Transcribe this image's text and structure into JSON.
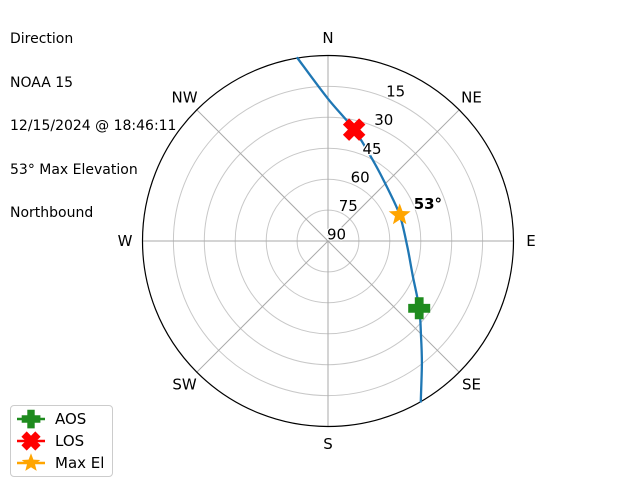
{
  "header": {
    "title": "Direction",
    "satellite": "NOAA 15",
    "timestamp": "12/15/2024 @ 18:46:11",
    "max_elevation": "53° Max Elevation",
    "heading": "Northbound"
  },
  "chart_data": {
    "type": "polar",
    "subtype": "azimuth-elevation-satellite-pass",
    "title": "Direction",
    "compass_labels": [
      "N",
      "NE",
      "E",
      "SE",
      "S",
      "SW",
      "W",
      "NW"
    ],
    "elevation_ticks": [
      15,
      30,
      45,
      60,
      75,
      90
    ],
    "elevation_tick_labels": [
      "15",
      "30",
      "45",
      "60",
      "75",
      "90"
    ],
    "elevation_range": [
      0,
      90
    ],
    "grid": true,
    "max_elevation_deg": 53,
    "track": {
      "name": "NOAA 15 pass track",
      "color": "#1f77b4",
      "points_az_el": [
        [
          350.5,
          0
        ],
        [
          0,
          21
        ],
        [
          13.2,
          34.5
        ],
        [
          28.7,
          45
        ],
        [
          49,
          51.5
        ],
        [
          70,
          53
        ],
        [
          93.6,
          51.5
        ],
        [
          112.4,
          45.5
        ],
        [
          126.4,
          35
        ],
        [
          135.6,
          25.5
        ],
        [
          142.6,
          15
        ],
        [
          150,
          0
        ]
      ]
    },
    "markers": [
      {
        "label": "AOS",
        "shape": "plus",
        "color": "#1e8b1e",
        "az": 126.4,
        "el": 35
      },
      {
        "label": "LOS",
        "shape": "x",
        "color": "#ff0000",
        "az": 13.2,
        "el": 34.5
      },
      {
        "label": "Max El",
        "shape": "star",
        "color": "#ffa500",
        "az": 70,
        "el": 53
      }
    ],
    "annotation": {
      "text": "53°",
      "az": 70,
      "el": 53
    },
    "legend_position": "bottom-left",
    "colors": {
      "grid_ring": "#c8c8c8",
      "grid_spoke": "#a9a9a9",
      "outline": "#000000",
      "track": "#1f77b4"
    }
  }
}
